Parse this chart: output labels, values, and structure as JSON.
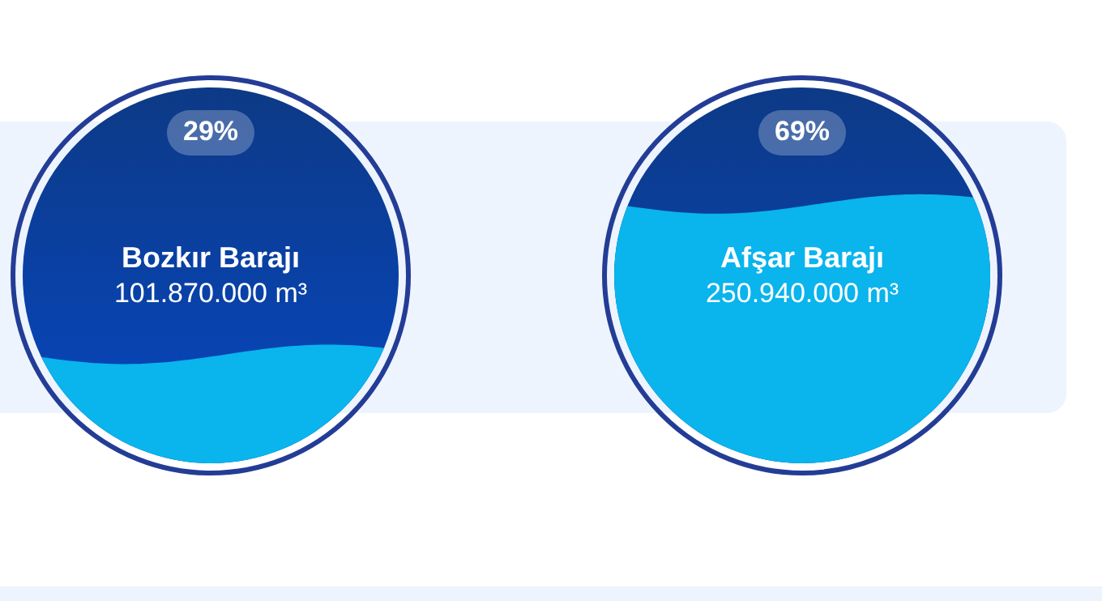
{
  "chart_data": [
    {
      "type": "other",
      "title": "Bozkır Barajı",
      "values": [
        29
      ],
      "value_labels": [
        "29%"
      ],
      "annotations": [
        "101.870.000 m³"
      ]
    },
    {
      "type": "other",
      "title": "Afşar Barajı",
      "values": [
        69
      ],
      "value_labels": [
        "69%"
      ],
      "annotations": [
        "250.940.000 m³"
      ]
    }
  ]
}
